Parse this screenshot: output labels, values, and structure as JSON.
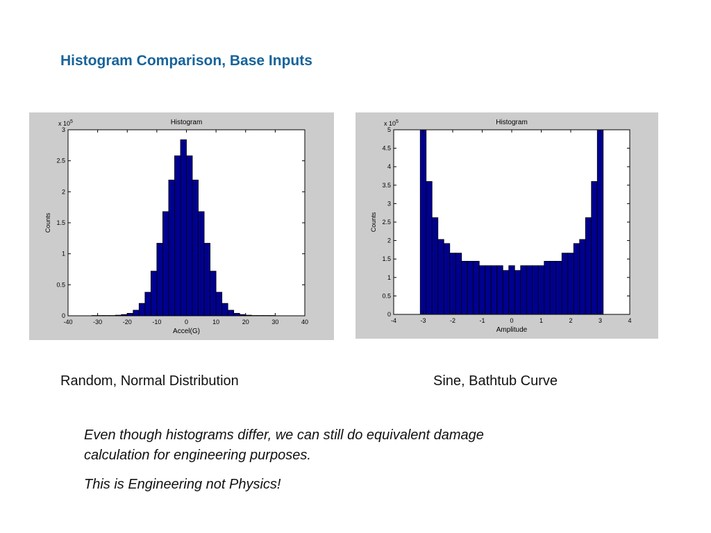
{
  "slide": {
    "title": "Histogram Comparison, Base Inputs",
    "caption_left": "Random, Normal Distribution",
    "caption_right": "Sine, Bathtub Curve",
    "note_line1": "Even though histograms differ, we can still do equivalent damage",
    "note_line2": "calculation for engineering purposes.",
    "note_line3": "This is Engineering not Physics!"
  },
  "colors": {
    "title": "#17639a",
    "bar_fill": "#00008f",
    "figure_bg": "#cccccc"
  },
  "chart_data": [
    {
      "type": "bar",
      "title": "Histogram",
      "xlabel": "Accel(G)",
      "ylabel": "Counts",
      "y_multiplier_label": "x 10^5",
      "xlim": [
        -40,
        40
      ],
      "ylim": [
        0,
        3
      ],
      "xticks": [
        -40,
        -30,
        -20,
        -10,
        0,
        10,
        20,
        30,
        40
      ],
      "yticks": [
        0,
        0.5,
        1,
        1.5,
        2,
        2.5,
        3
      ],
      "grid": false,
      "bin_width": 2,
      "bin_centers": [
        -31,
        -29,
        -27,
        -25,
        -23,
        -21,
        -19,
        -17,
        -15,
        -13,
        -11,
        -9,
        -7,
        -5,
        -3,
        -1,
        1,
        3,
        5,
        7,
        9,
        11,
        13,
        15,
        17,
        19,
        21,
        23,
        25,
        27,
        29
      ],
      "values": [
        0.005,
        0.005,
        0.005,
        0.005,
        0.01,
        0.02,
        0.04,
        0.09,
        0.2,
        0.38,
        0.72,
        1.17,
        1.68,
        2.19,
        2.58,
        2.84,
        2.58,
        2.19,
        1.68,
        1.17,
        0.72,
        0.38,
        0.2,
        0.09,
        0.04,
        0.02,
        0.01,
        0.005,
        0.005,
        0.005,
        0.005
      ]
    },
    {
      "type": "bar",
      "title": "Histogram",
      "xlabel": "Amplitude",
      "ylabel": "Counts",
      "y_multiplier_label": "x 10^5",
      "xlim": [
        -4,
        4
      ],
      "ylim": [
        0,
        5
      ],
      "xticks": [
        -4,
        -3,
        -2,
        -1,
        0,
        1,
        2,
        3,
        4
      ],
      "yticks": [
        0,
        0.5,
        1,
        1.5,
        2,
        2.5,
        3,
        3.5,
        4,
        4.5,
        5
      ],
      "grid": false,
      "bin_width": 0.2,
      "bin_centers": [
        -3.0,
        -2.8,
        -2.6,
        -2.4,
        -2.2,
        -2.0,
        -1.8,
        -1.6,
        -1.4,
        -1.2,
        -1.0,
        -0.8,
        -0.6,
        -0.4,
        -0.2,
        0.0,
        0.2,
        0.4,
        0.6,
        0.8,
        1.0,
        1.2,
        1.4,
        1.6,
        1.8,
        2.0,
        2.2,
        2.4,
        2.6,
        2.8,
        3.0
      ],
      "values": [
        5.0,
        3.6,
        2.62,
        2.03,
        1.92,
        1.66,
        1.66,
        1.44,
        1.44,
        1.44,
        1.32,
        1.32,
        1.32,
        1.32,
        1.19,
        1.32,
        1.19,
        1.32,
        1.32,
        1.32,
        1.32,
        1.44,
        1.44,
        1.44,
        1.66,
        1.66,
        1.92,
        2.03,
        2.62,
        3.6,
        5.0
      ]
    }
  ]
}
